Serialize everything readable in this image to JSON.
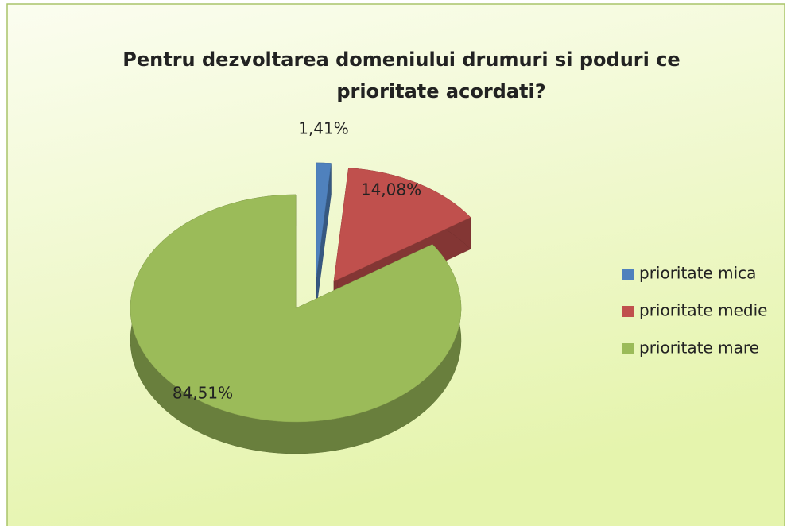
{
  "chart_data": {
    "type": "pie",
    "title": [
      "Pentru dezvoltarea domeniului drumuri si poduri ce",
      "prioritate acordati?"
    ],
    "categories": [
      "prioritate mica",
      "prioritate medie",
      "prioritate mare"
    ],
    "values": [
      1.41,
      14.08,
      84.51
    ],
    "value_labels": [
      "1,41%",
      "14,08%",
      "84,51%"
    ],
    "colors": [
      "#4f81bd",
      "#c0504d",
      "#9bbb59"
    ],
    "legend": "right"
  }
}
